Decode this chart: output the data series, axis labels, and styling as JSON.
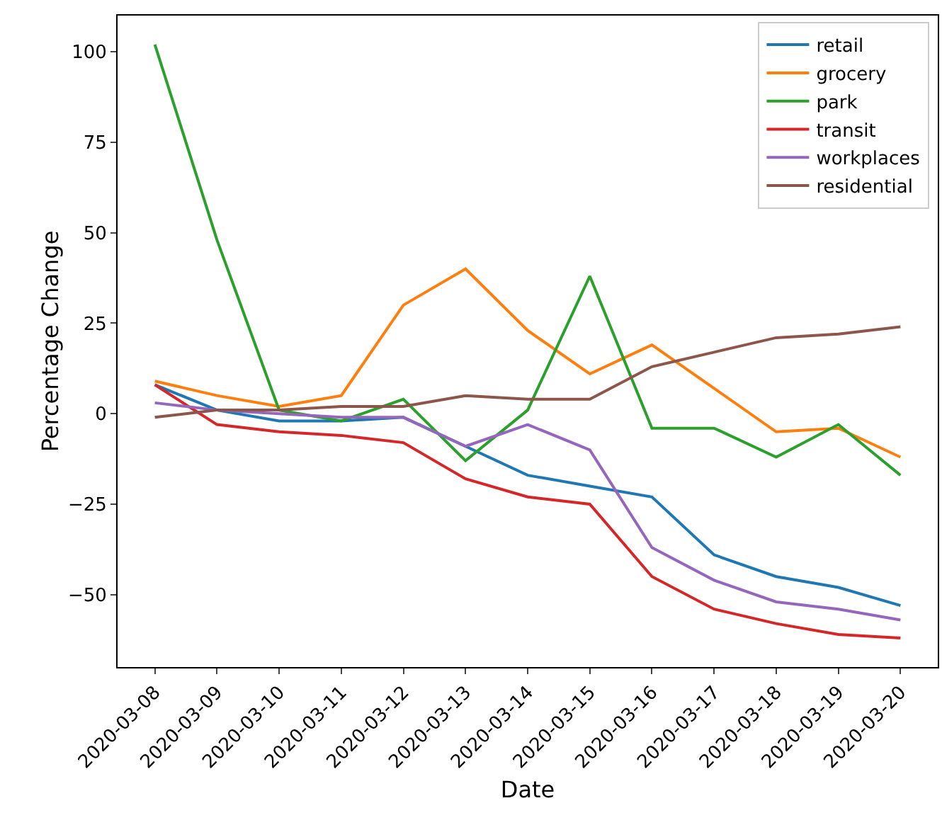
{
  "chart_data": {
    "type": "line",
    "xlabel": "Date",
    "ylabel": "Percentage Change",
    "categories": [
      "2020-03-08",
      "2020-03-09",
      "2020-03-10",
      "2020-03-11",
      "2020-03-12",
      "2020-03-13",
      "2020-03-14",
      "2020-03-15",
      "2020-03-16",
      "2020-03-17",
      "2020-03-18",
      "2020-03-19",
      "2020-03-20"
    ],
    "series": [
      {
        "name": "retail",
        "color": "#1f77b4",
        "values": [
          8,
          1,
          -2,
          -2,
          -1,
          -9,
          -17,
          -20,
          -23,
          -39,
          -45,
          -48,
          -53
        ]
      },
      {
        "name": "grocery",
        "color": "#ff7f0e",
        "values": [
          9,
          5,
          2,
          5,
          30,
          40,
          23,
          11,
          19,
          7,
          -5,
          -4,
          -12
        ]
      },
      {
        "name": "park",
        "color": "#2ca02c",
        "values": [
          102,
          48,
          1,
          -2,
          4,
          -13,
          1,
          38,
          -4,
          -4,
          -12,
          -3,
          -17
        ]
      },
      {
        "name": "transit",
        "color": "#d62728",
        "values": [
          8,
          -3,
          -5,
          -6,
          -8,
          -18,
          -23,
          -25,
          -45,
          -54,
          -58,
          -61,
          -62
        ]
      },
      {
        "name": "workplaces",
        "color": "#9467bd",
        "values": [
          3,
          1,
          0,
          -1,
          -1,
          -9,
          -3,
          -10,
          -37,
          -46,
          -52,
          -54,
          -57
        ]
      },
      {
        "name": "residential",
        "color": "#8c564b",
        "values": [
          -1,
          1,
          1,
          2,
          2,
          5,
          4,
          4,
          13,
          17,
          21,
          22,
          24
        ]
      }
    ],
    "ylim": [
      -70,
      110
    ],
    "yticks": [
      -50,
      -25,
      0,
      25,
      50,
      75,
      100
    ],
    "grid": false,
    "legend": "top right",
    "marker": "none",
    "line_style": "solid"
  }
}
